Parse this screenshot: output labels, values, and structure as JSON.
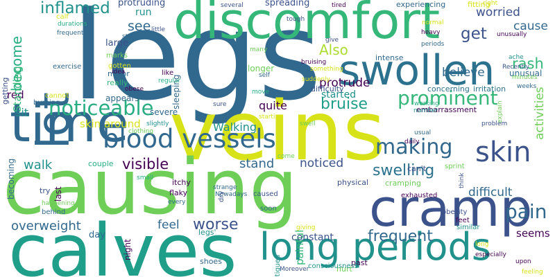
{
  "palette": {
    "purple": "#440154",
    "indigo": "#3b528b",
    "blue": "#31688e",
    "steel": "#2c728e",
    "teal": "#21918c",
    "green_teal": "#1f9e89",
    "sea": "#28ae80",
    "green": "#35b779",
    "lime": "#6ece58",
    "yellow_green": "#addc30",
    "yellow": "#d8e219",
    "bright_yellow": "#fde725"
  },
  "words": [
    {
      "text": "legs",
      "color": "#31688e"
    },
    {
      "text": "veins",
      "color": "#d8e219"
    },
    {
      "text": "causing",
      "color": "#6ece58"
    },
    {
      "text": "calves",
      "color": "#1f9e89"
    },
    {
      "text": "discomfort",
      "color": "#35b779"
    },
    {
      "text": "time",
      "color": "#31688e"
    },
    {
      "text": "cramp",
      "color": "#3b528b"
    },
    {
      "text": "swollen",
      "color": "#2c728e"
    },
    {
      "text": "long periods",
      "color": "#21918c"
    },
    {
      "text": "lot",
      "color": "#31688e"
    },
    {
      "text": "blood vessels",
      "color": "#31688e"
    },
    {
      "text": "noticeable",
      "color": "#28ae80"
    },
    {
      "text": "skin",
      "color": "#3b528b"
    },
    {
      "text": "making",
      "color": "#31688e"
    },
    {
      "text": "prominent",
      "color": "#35b779"
    },
    {
      "text": "pain",
      "color": "#31688e"
    },
    {
      "text": "inflamed",
      "color": "#21918c"
    },
    {
      "text": "become",
      "color": "#28ae80"
    },
    {
      "text": "bruise",
      "color": "#1f9e89"
    },
    {
      "text": "Also",
      "color": "#addc30"
    },
    {
      "text": "frequent",
      "color": "#31688e"
    },
    {
      "text": "swelling",
      "color": "#2c728e"
    },
    {
      "text": "visible",
      "color": "#440154"
    },
    {
      "text": "worse",
      "color": "#3b528b"
    },
    {
      "text": "get",
      "color": "#3b528b"
    },
    {
      "text": "rash",
      "color": "#35b779"
    },
    {
      "text": "see",
      "color": "#31688e"
    },
    {
      "text": "walk",
      "color": "#21918c"
    },
    {
      "text": "overweight",
      "color": "#31688e"
    },
    {
      "text": "feel",
      "color": "#31688e"
    },
    {
      "text": "stand",
      "color": "#31688e"
    },
    {
      "text": "noticed",
      "color": "#3b528b"
    },
    {
      "text": "difficult",
      "color": "#31688e"
    },
    {
      "text": "quite",
      "color": "#440154"
    },
    {
      "text": "protrude",
      "color": "#440154"
    },
    {
      "text": "believe",
      "color": "#31688e"
    },
    {
      "text": "worried",
      "color": "#3b528b"
    },
    {
      "text": "cause",
      "color": "#31688e"
    },
    {
      "text": "Walking",
      "color": "#21918c"
    },
    {
      "text": "skin around",
      "color": "#d8e219"
    },
    {
      "text": "red",
      "color": "#440154"
    },
    {
      "text": "sit",
      "color": "#21918c"
    },
    {
      "text": "run",
      "color": "#21918c"
    },
    {
      "text": "started",
      "color": "#21918c"
    },
    {
      "text": "activities",
      "color": "#6ece58"
    },
    {
      "text": "seems",
      "color": "#440154"
    },
    {
      "text": "painful",
      "color": "#35b779"
    },
    {
      "text": "constant",
      "color": "#3b528b"
    },
    {
      "text": "unusual",
      "color": "#31688e"
    },
    {
      "text": "Standing",
      "color": "#35b779"
    },
    {
      "text": "becoming",
      "color": "#31688e"
    },
    {
      "text": "protruding",
      "color": "#3b528b"
    },
    {
      "text": "spreading",
      "color": "#3b528b"
    },
    {
      "text": "difficulty",
      "color": "#3b528b"
    },
    {
      "text": "concerning",
      "color": "#2c728e"
    },
    {
      "text": "irritation",
      "color": "#2c728e"
    },
    {
      "text": "longer",
      "color": "#6ece58"
    },
    {
      "text": "appears",
      "color": "#31688e"
    },
    {
      "text": "large",
      "color": "#3b528b"
    },
    {
      "text": "sleeping",
      "color": "#31688e"
    },
    {
      "text": "night",
      "color": "#440154"
    },
    {
      "text": "day",
      "color": "#31688e"
    },
    {
      "text": "legs'",
      "color": "#21918c"
    },
    {
      "text": "shoes",
      "color": "#31688e"
    },
    {
      "text": "intense",
      "color": "#31688e"
    },
    {
      "text": "experiencing",
      "color": "#31688e"
    },
    {
      "text": "fitting",
      "color": "#d8e219"
    },
    {
      "text": "embarrassment",
      "color": "#440154"
    },
    {
      "text": "severe",
      "color": "#31688e"
    },
    {
      "text": "couple",
      "color": "#28ae80"
    },
    {
      "text": "itchy",
      "color": "#440154"
    },
    {
      "text": "flaky",
      "color": "#440154"
    },
    {
      "text": "physical",
      "color": "#3b528b"
    },
    {
      "text": "cramping",
      "color": "#6ece58"
    },
    {
      "text": "can't",
      "color": "#3b528b"
    },
    {
      "text": "sprint",
      "color": "#6ece58"
    },
    {
      "text": "exhausted",
      "color": "#440154"
    },
    {
      "text": "obesity",
      "color": "#3b528b"
    },
    {
      "text": "feet",
      "color": "#440154"
    },
    {
      "text": "similar",
      "color": "#21918c"
    },
    {
      "text": "past",
      "color": "#440154"
    },
    {
      "text": "hurt",
      "color": "#6ece58"
    },
    {
      "text": "fatigued",
      "color": "#21918c"
    },
    {
      "text": "consciousness",
      "color": "#21918c"
    },
    {
      "text": "last",
      "color": "#440154"
    },
    {
      "text": "getting",
      "color": "#3b528b"
    },
    {
      "text": "exercise",
      "color": "#31688e"
    },
    {
      "text": "calf",
      "color": "#d8e219"
    },
    {
      "text": "durations",
      "color": "#28ae80"
    },
    {
      "text": "frequently",
      "color": "#31688e"
    },
    {
      "text": "gotten",
      "color": "#d8e219"
    },
    {
      "text": "marks",
      "color": "#6ece58"
    },
    {
      "text": "really",
      "color": "#35b779"
    },
    {
      "text": "major",
      "color": "#31688e"
    },
    {
      "text": "cannot",
      "color": "#d8e219"
    },
    {
      "text": "burning",
      "color": "#31688e"
    },
    {
      "text": "idea",
      "color": "#440154"
    },
    {
      "text": "like",
      "color": "#440154"
    },
    {
      "text": "regular",
      "color": "#28ae80"
    },
    {
      "text": "obese",
      "color": "#440154"
    },
    {
      "text": "slightly",
      "color": "#21918c"
    },
    {
      "text": "clothing",
      "color": "#6ece58"
    },
    {
      "text": "small",
      "color": "#28ae80"
    },
    {
      "text": "try",
      "color": "#3b528b"
    },
    {
      "text": "happening",
      "color": "#6ece58"
    },
    {
      "text": "behind",
      "color": "#31688e"
    },
    {
      "text": "every",
      "color": "#31688e"
    },
    {
      "text": "strange",
      "color": "#31688e"
    },
    {
      "text": "Nowadays",
      "color": "#31688e"
    },
    {
      "text": "caused",
      "color": "#3b528b"
    },
    {
      "text": "soon",
      "color": "#31688e"
    },
    {
      "text": "giving",
      "color": "#d8e219"
    },
    {
      "text": "Moreover",
      "color": "#3b528b"
    },
    {
      "text": "come",
      "color": "#6ece58"
    },
    {
      "text": "dry",
      "color": "#3b528b"
    },
    {
      "text": "starting",
      "color": "#d8e219"
    },
    {
      "text": "swell",
      "color": "#6ece58"
    },
    {
      "text": "sure",
      "color": "#3b528b"
    },
    {
      "text": "working",
      "color": "#28ae80"
    },
    {
      "text": "number",
      "color": "#21918c"
    },
    {
      "text": "usual",
      "color": "#31688e"
    },
    {
      "text": "daily",
      "color": "#440154"
    },
    {
      "text": "self",
      "color": "#31688e"
    },
    {
      "text": "move",
      "color": "#28ae80"
    },
    {
      "text": "suddenly",
      "color": "#d8e219"
    },
    {
      "text": "something",
      "color": "#d8e219"
    },
    {
      "text": "bruising",
      "color": "#440154"
    },
    {
      "text": "stream",
      "color": "#31688e"
    },
    {
      "text": "little",
      "color": "#3b528b"
    },
    {
      "text": "several",
      "color": "#3b528b"
    },
    {
      "text": "tough",
      "color": "#3b528b"
    },
    {
      "text": "tired",
      "color": "#440154"
    },
    {
      "text": "give",
      "color": "#3b528b"
    },
    {
      "text": "many",
      "color": "#6ece58"
    },
    {
      "text": "normal",
      "color": "#d8e219"
    },
    {
      "text": "heavy",
      "color": "#440154"
    },
    {
      "text": "periods",
      "color": "#31688e"
    },
    {
      "text": "right",
      "color": "#d8e219"
    },
    {
      "text": "unusually",
      "color": "#440154"
    },
    {
      "text": "ache",
      "color": "#21918c"
    },
    {
      "text": "minutes",
      "color": "#6ece58"
    },
    {
      "text": "weeks",
      "color": "#31688e"
    },
    {
      "text": "Recently",
      "color": "#3b528b"
    },
    {
      "text": "explain",
      "color": "#6ece58"
    },
    {
      "text": "problem",
      "color": "#3b528b"
    },
    {
      "text": "think",
      "color": "#3b528b"
    },
    {
      "text": "long",
      "color": "#d8e219"
    },
    {
      "text": "especially",
      "color": "#440154"
    },
    {
      "text": "upon",
      "color": "#440154"
    },
    {
      "text": "feeling",
      "color": "#d8e219"
    }
  ]
}
